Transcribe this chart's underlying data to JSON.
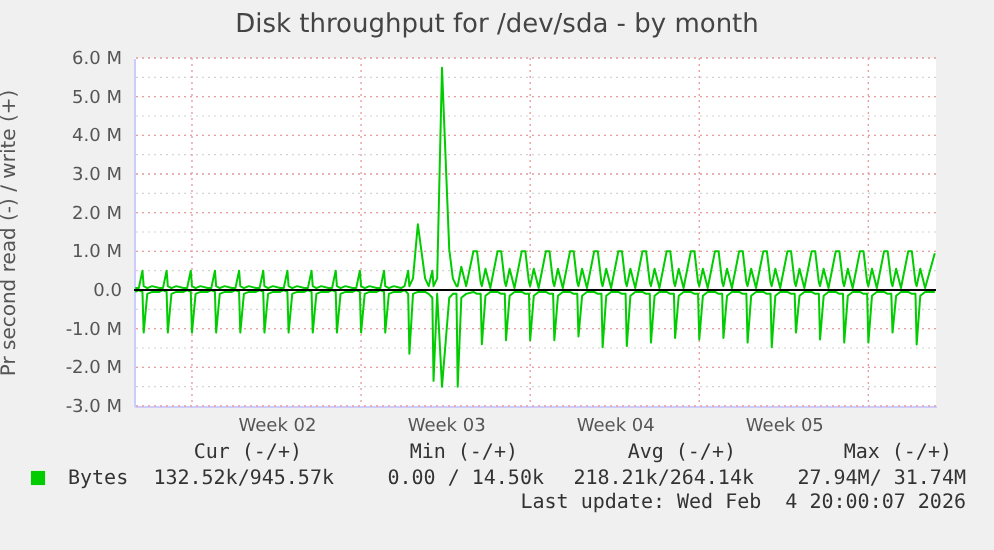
{
  "chart_data": {
    "type": "line",
    "title": "Disk throughput for /dev/sda - by month",
    "ylabel": "Pr second read (-) / write (+)",
    "xlim": [
      "2026-01-02T14:24",
      "2026-02-04T19:12"
    ],
    "ylim": [
      -3,
      6
    ],
    "xticks": [
      {
        "value": "2026-01-05",
        "label": null
      },
      {
        "value": "2026-01-08T12:00",
        "label": "Week 02"
      },
      {
        "value": "2026-01-12",
        "label": null
      },
      {
        "value": "2026-01-15T12:00",
        "label": "Week 03"
      },
      {
        "value": "2026-01-19",
        "label": null
      },
      {
        "value": "2026-01-22T12:00",
        "label": "Week 04"
      },
      {
        "value": "2026-01-26",
        "label": null
      },
      {
        "value": "2026-01-29T12:00",
        "label": "Week 05"
      },
      {
        "value": "2026-02-02",
        "label": null
      }
    ],
    "yticks": [
      {
        "value": -3,
        "label": "-3.0 M"
      },
      {
        "value": -2,
        "label": "-2.0 M"
      },
      {
        "value": -1,
        "label": "-1.0 M"
      },
      {
        "value": 0,
        "label": "0.0"
      },
      {
        "value": 1,
        "label": "1.0 M"
      },
      {
        "value": 2,
        "label": "2.0 M"
      },
      {
        "value": 3,
        "label": "3.0 M"
      },
      {
        "value": 4,
        "label": "4.0 M"
      },
      {
        "value": 5,
        "label": "5.0 M"
      },
      {
        "value": 6,
        "label": "6.0 M"
      }
    ],
    "grid": true,
    "legend": "bottom left",
    "x": [
      "2026-01-02T15:36",
      "2026-01-02T19:12",
      "2026-01-02T22:48",
      "2026-01-03T00:00",
      "2026-01-03T03:36",
      "2026-01-03T08:24",
      "2026-01-03T15:36",
      "2026-01-03T19:12",
      "2026-01-03T22:48",
      "2026-01-04T00:00",
      "2026-01-04T03:36",
      "2026-01-04T08:24",
      "2026-01-04T15:36",
      "2026-01-04T19:12",
      "2026-01-04T22:48",
      "2026-01-05T00:00",
      "2026-01-05T03:36",
      "2026-01-05T08:24",
      "2026-01-05T15:36",
      "2026-01-05T19:12",
      "2026-01-05T22:48",
      "2026-01-06T00:00",
      "2026-01-06T03:36",
      "2026-01-06T08:24",
      "2026-01-06T15:36",
      "2026-01-06T19:12",
      "2026-01-06T22:48",
      "2026-01-07T00:00",
      "2026-01-07T03:36",
      "2026-01-07T08:24",
      "2026-01-07T15:36",
      "2026-01-07T19:12",
      "2026-01-07T22:48",
      "2026-01-08T00:00",
      "2026-01-08T03:36",
      "2026-01-08T08:24",
      "2026-01-08T15:36",
      "2026-01-08T19:12",
      "2026-01-08T22:48",
      "2026-01-09T00:00",
      "2026-01-09T03:36",
      "2026-01-09T08:24",
      "2026-01-09T15:36",
      "2026-01-09T19:12",
      "2026-01-09T22:48",
      "2026-01-10T00:00",
      "2026-01-10T03:36",
      "2026-01-10T08:24",
      "2026-01-10T15:36",
      "2026-01-10T19:12",
      "2026-01-10T22:48",
      "2026-01-11T00:00",
      "2026-01-11T03:36",
      "2026-01-11T08:24",
      "2026-01-11T15:36",
      "2026-01-11T19:12",
      "2026-01-11T22:48",
      "2026-01-12T00:00",
      "2026-01-12T03:36",
      "2026-01-12T08:24",
      "2026-01-12T15:36",
      "2026-01-12T19:12",
      "2026-01-12T22:48",
      "2026-01-13T00:00",
      "2026-01-13T03:36",
      "2026-01-13T08:24",
      "2026-01-13T15:36",
      "2026-01-13T19:12",
      "2026-01-13T22:48",
      "2026-01-14T00:00",
      "2026-01-14T03:36",
      "2026-01-14T08:24",
      "2026-01-14T15:36",
      "2026-01-14T19:12",
      "2026-01-14T22:48",
      "2026-01-15T00:00",
      "2026-01-15T03:36",
      "2026-01-15T08:24",
      "2026-01-15T15:36",
      "2026-01-15T19:12",
      "2026-01-15T22:48",
      "2026-01-16T00:00",
      "2026-01-16T03:36",
      "2026-01-16T08:24",
      "2026-01-16T15:36",
      "2026-01-16T19:12",
      "2026-01-16T22:48",
      "2026-01-17T00:00",
      "2026-01-17T03:36",
      "2026-01-17T08:24",
      "2026-01-17T15:36",
      "2026-01-17T19:12",
      "2026-01-17T22:48",
      "2026-01-18T00:00",
      "2026-01-18T03:36",
      "2026-01-18T08:24",
      "2026-01-18T15:36",
      "2026-01-18T19:12",
      "2026-01-18T22:48",
      "2026-01-19T00:00",
      "2026-01-19T03:36",
      "2026-01-19T08:24",
      "2026-01-19T15:36",
      "2026-01-19T19:12",
      "2026-01-19T22:48",
      "2026-01-20T00:00",
      "2026-01-20T03:36",
      "2026-01-20T08:24",
      "2026-01-20T15:36",
      "2026-01-20T19:12",
      "2026-01-20T22:48",
      "2026-01-21T00:00",
      "2026-01-21T03:36",
      "2026-01-21T08:24",
      "2026-01-21T15:36",
      "2026-01-21T19:12",
      "2026-01-21T22:48",
      "2026-01-22T00:00",
      "2026-01-22T03:36",
      "2026-01-22T08:24",
      "2026-01-22T15:36",
      "2026-01-22T19:12",
      "2026-01-22T22:48",
      "2026-01-23T00:00",
      "2026-01-23T03:36",
      "2026-01-23T08:24",
      "2026-01-23T15:36",
      "2026-01-23T19:12",
      "2026-01-23T22:48",
      "2026-01-24T00:00",
      "2026-01-24T03:36",
      "2026-01-24T08:24",
      "2026-01-24T15:36",
      "2026-01-24T19:12",
      "2026-01-24T22:48",
      "2026-01-25T00:00",
      "2026-01-25T03:36",
      "2026-01-25T08:24",
      "2026-01-25T15:36",
      "2026-01-25T19:12",
      "2026-01-25T22:48",
      "2026-01-26T00:00",
      "2026-01-26T03:36",
      "2026-01-26T08:24",
      "2026-01-26T15:36",
      "2026-01-26T19:12",
      "2026-01-26T22:48",
      "2026-01-27T00:00",
      "2026-01-27T03:36",
      "2026-01-27T08:24",
      "2026-01-27T15:36",
      "2026-01-27T19:12",
      "2026-01-27T22:48",
      "2026-01-28T00:00",
      "2026-01-28T03:36",
      "2026-01-28T08:24",
      "2026-01-28T15:36",
      "2026-01-28T19:12",
      "2026-01-28T22:48",
      "2026-01-29T00:00",
      "2026-01-29T03:36",
      "2026-01-29T08:24",
      "2026-01-29T15:36",
      "2026-01-29T19:12",
      "2026-01-29T22:48",
      "2026-01-30T00:00",
      "2026-01-30T03:36",
      "2026-01-30T08:24",
      "2026-01-30T15:36",
      "2026-01-30T19:12",
      "2026-01-30T22:48",
      "2026-01-31T00:00",
      "2026-01-31T03:36",
      "2026-01-31T08:24",
      "2026-01-31T15:36",
      "2026-01-31T19:12",
      "2026-01-31T22:48",
      "2026-02-01T00:00",
      "2026-02-01T03:36",
      "2026-02-01T08:24",
      "2026-02-01T15:36",
      "2026-02-01T19:12",
      "2026-02-01T22:48",
      "2026-02-02T00:00",
      "2026-02-02T03:36",
      "2026-02-02T08:24",
      "2026-02-02T15:36",
      "2026-02-02T19:12",
      "2026-02-02T22:48",
      "2026-02-03T00:00",
      "2026-02-03T03:36",
      "2026-02-03T08:24",
      "2026-02-03T15:36",
      "2026-02-03T19:12",
      "2026-02-03T22:48",
      "2026-02-04T00:00",
      "2026-02-04T03:36",
      "2026-02-04T08:24",
      "2026-02-04T18:00"
    ],
    "series": [
      {
        "name": "Bytes",
        "color": "#00cc00",
        "values": [
          0.05,
          0.05,
          0.5,
          0.1,
          0.05,
          0.1,
          0.05,
          0.05,
          0.5,
          0.1,
          0.05,
          0.1,
          0.05,
          0.05,
          0.5,
          0.1,
          0.05,
          0.1,
          0.05,
          0.05,
          0.5,
          0.1,
          0.05,
          0.1,
          0.05,
          0.05,
          0.5,
          0.1,
          0.05,
          0.1,
          0.05,
          0.05,
          0.5,
          0.1,
          0.05,
          0.1,
          0.05,
          0.05,
          0.5,
          0.1,
          0.05,
          0.1,
          0.05,
          0.05,
          0.5,
          0.1,
          0.05,
          0.1,
          0.05,
          0.05,
          0.5,
          0.1,
          0.05,
          0.1,
          0.05,
          0.05,
          0.5,
          0.1,
          0.05,
          0.1,
          0.05,
          0.05,
          0.5,
          0.1,
          0.05,
          0.1,
          0.05,
          0.1,
          0.5,
          0.1,
          0.3,
          1.7,
          0.3,
          0.1,
          0.5,
          0.1,
          0.3,
          5.75,
          1.05,
          0.3,
          0.1,
          0.1,
          0.6,
          0.1,
          1,
          1,
          0.2,
          0.1,
          0.55,
          0.05,
          1,
          1,
          0.2,
          0.1,
          0.55,
          0.05,
          1,
          1,
          0.2,
          0.1,
          0.55,
          0.05,
          1,
          1,
          0.2,
          0.1,
          0.55,
          0.05,
          1,
          1,
          0.2,
          0.1,
          0.55,
          0.05,
          1,
          1,
          0.2,
          0.1,
          0.55,
          0.05,
          1,
          1,
          0.2,
          0.1,
          0.55,
          0.05,
          1,
          1,
          0.2,
          0.1,
          0.55,
          0.05,
          1,
          1,
          0.2,
          0.1,
          0.55,
          0.05,
          1,
          1,
          0.2,
          0.1,
          0.55,
          0.05,
          1,
          1,
          0.2,
          0.1,
          0.55,
          0.05,
          1,
          1,
          0.2,
          0.1,
          0.55,
          0.05,
          1,
          1,
          0.2,
          0.1,
          0.55,
          0.05,
          1,
          1,
          0.2,
          0.1,
          0.55,
          0.05,
          1,
          1,
          0.2,
          0.1,
          0.55,
          0.05,
          1,
          1,
          0.2,
          0.1,
          0.55,
          0.05,
          1,
          1,
          0.2,
          0.1,
          0.55,
          0.05,
          1,
          1,
          0.2,
          0.1,
          0.55,
          0.05,
          1,
          1,
          0.2,
          0.1,
          0.55,
          0.05,
          0.95
        ]
      },
      {
        "color": "#00cc00",
        "values": [
          -0.05,
          0,
          -0.05,
          -1.1,
          -0.1,
          -0.05,
          -0.05,
          0,
          -0.05,
          -1.1,
          -0.1,
          -0.05,
          -0.05,
          0,
          -0.05,
          -1.1,
          -0.1,
          -0.05,
          -0.05,
          0,
          -0.05,
          -1.1,
          -0.1,
          -0.05,
          -0.05,
          0,
          -0.05,
          -1.1,
          -0.1,
          -0.05,
          -0.05,
          0,
          -0.05,
          -1.1,
          -0.1,
          -0.05,
          -0.05,
          0,
          -0.05,
          -1.1,
          -0.1,
          -0.05,
          -0.05,
          0,
          -0.05,
          -1.1,
          -0.1,
          -0.05,
          -0.05,
          0,
          -0.05,
          -1.1,
          -0.1,
          -0.05,
          -0.05,
          0,
          -0.05,
          -1.1,
          -0.1,
          -0.05,
          -0.05,
          0,
          -0.05,
          -1.1,
          -0.1,
          -0.05,
          -0.05,
          0,
          -0.1,
          -1.65,
          -0.1,
          -0.05,
          -0.05,
          -0.1,
          -0.2,
          -2.35,
          -0.1,
          -2.5,
          -0.2,
          -0.1,
          -0.1,
          -2.5,
          -0.2,
          -0.1,
          -0.05,
          -0.1,
          -0.1,
          -1.4,
          -0.15,
          -0.05,
          -0.05,
          -0.1,
          -0.1,
          -1.3,
          -0.15,
          -0.05,
          -0.05,
          -0.1,
          -0.1,
          -1.3,
          -0.15,
          -0.05,
          -0.05,
          -0.1,
          -0.1,
          -1.3,
          -0.15,
          -0.05,
          -0.05,
          -0.1,
          -0.1,
          -1.2,
          -0.15,
          -0.05,
          -0.05,
          -0.1,
          -0.1,
          -1.48,
          -0.15,
          -0.05,
          -0.05,
          -0.1,
          -0.1,
          -1.45,
          -0.15,
          -0.05,
          -0.05,
          -0.1,
          -0.1,
          -1.36,
          -0.15,
          -0.05,
          -0.05,
          -0.1,
          -0.1,
          -1.24,
          -0.15,
          -0.05,
          -0.05,
          -0.1,
          -0.1,
          -1.28,
          -0.15,
          -0.05,
          -0.05,
          -0.1,
          -0.1,
          -1.24,
          -0.15,
          -0.05,
          -0.05,
          -0.1,
          -0.1,
          -1.36,
          -0.15,
          -0.05,
          -0.05,
          -0.1,
          -0.1,
          -1.48,
          -0.15,
          -0.05,
          -0.05,
          -0.1,
          -0.1,
          -1.1,
          -0.15,
          -0.05,
          -0.05,
          -0.1,
          -0.1,
          -1.28,
          -0.15,
          -0.05,
          -0.05,
          -0.1,
          -0.1,
          -1.36,
          -0.15,
          -0.05,
          -0.05,
          -0.1,
          -0.1,
          -1.36,
          -0.15,
          -0.05,
          -0.05,
          -0.1,
          -0.1,
          -1.1,
          -0.15,
          -0.05,
          -0.05,
          -0.1,
          -0.1,
          -1.41,
          -0.15,
          -0.05,
          -0.05
        ]
      }
    ],
    "ref_lines": [
      {
        "axis": "y",
        "value": 0,
        "color": "#000000"
      }
    ],
    "annotations": [
      "Cur (-/+)",
      "Min (-/+)",
      "Avg (-/+)",
      "Max (-/+)",
      "132.52k/945.57k",
      "0.00 / 14.50k",
      "218.21k/264.14k",
      "27.94M/ 31.74M",
      "Last update: Wed Feb  4 20:00:07 2026"
    ]
  }
}
